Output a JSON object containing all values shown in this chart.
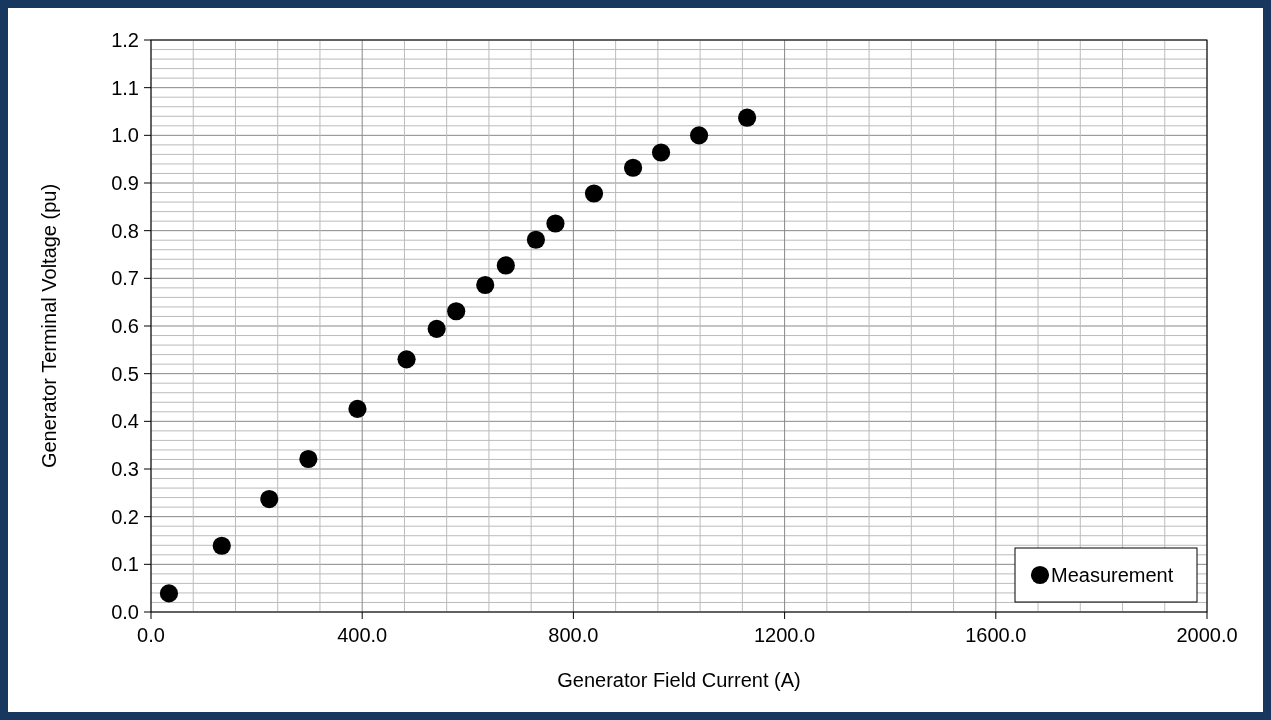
{
  "chart_data": {
    "type": "scatter",
    "xlabel": "Generator Field Current (A)",
    "ylabel": "Generator Terminal Voltage (pu)",
    "x": [
      34,
      134,
      224,
      298,
      391,
      484,
      541,
      578,
      633,
      672,
      729,
      766,
      839,
      913,
      966,
      1038,
      1129
    ],
    "series": [
      {
        "name": "Measurement",
        "color": "#000000",
        "values": [
          0.039,
          0.139,
          0.237,
          0.321,
          0.426,
          0.53,
          0.594,
          0.631,
          0.686,
          0.727,
          0.781,
          0.815,
          0.878,
          0.932,
          0.964,
          1.0,
          1.037
        ]
      }
    ],
    "xlim": [
      0,
      2000
    ],
    "xticks": [
      {
        "value": 0,
        "label": "0.0"
      },
      {
        "value": 400,
        "label": "400.0"
      },
      {
        "value": 800,
        "label": "800.0"
      },
      {
        "value": 1200,
        "label": "1200.0"
      },
      {
        "value": 1600,
        "label": "1600.0"
      },
      {
        "value": 2000,
        "label": "2000.0"
      }
    ],
    "ylim": [
      0,
      1.2
    ],
    "yticks": [
      {
        "value": 0,
        "label": "0.0"
      },
      {
        "value": 0.1,
        "label": "0.1"
      },
      {
        "value": 0.2,
        "label": "0.2"
      },
      {
        "value": 0.3,
        "label": "0.3"
      },
      {
        "value": 0.4,
        "label": "0.4"
      },
      {
        "value": 0.5,
        "label": "0.5"
      },
      {
        "value": 0.6,
        "label": "0.6"
      },
      {
        "value": 0.7,
        "label": "0.7"
      },
      {
        "value": 0.8,
        "label": "0.8"
      },
      {
        "value": 0.9,
        "label": "0.9"
      },
      {
        "value": 1.0,
        "label": "1.0"
      },
      {
        "value": 1.1,
        "label": "1.1"
      },
      {
        "value": 1.2,
        "label": "1.2"
      }
    ],
    "grid": true,
    "legend": "bottom right",
    "marker": "circle"
  }
}
